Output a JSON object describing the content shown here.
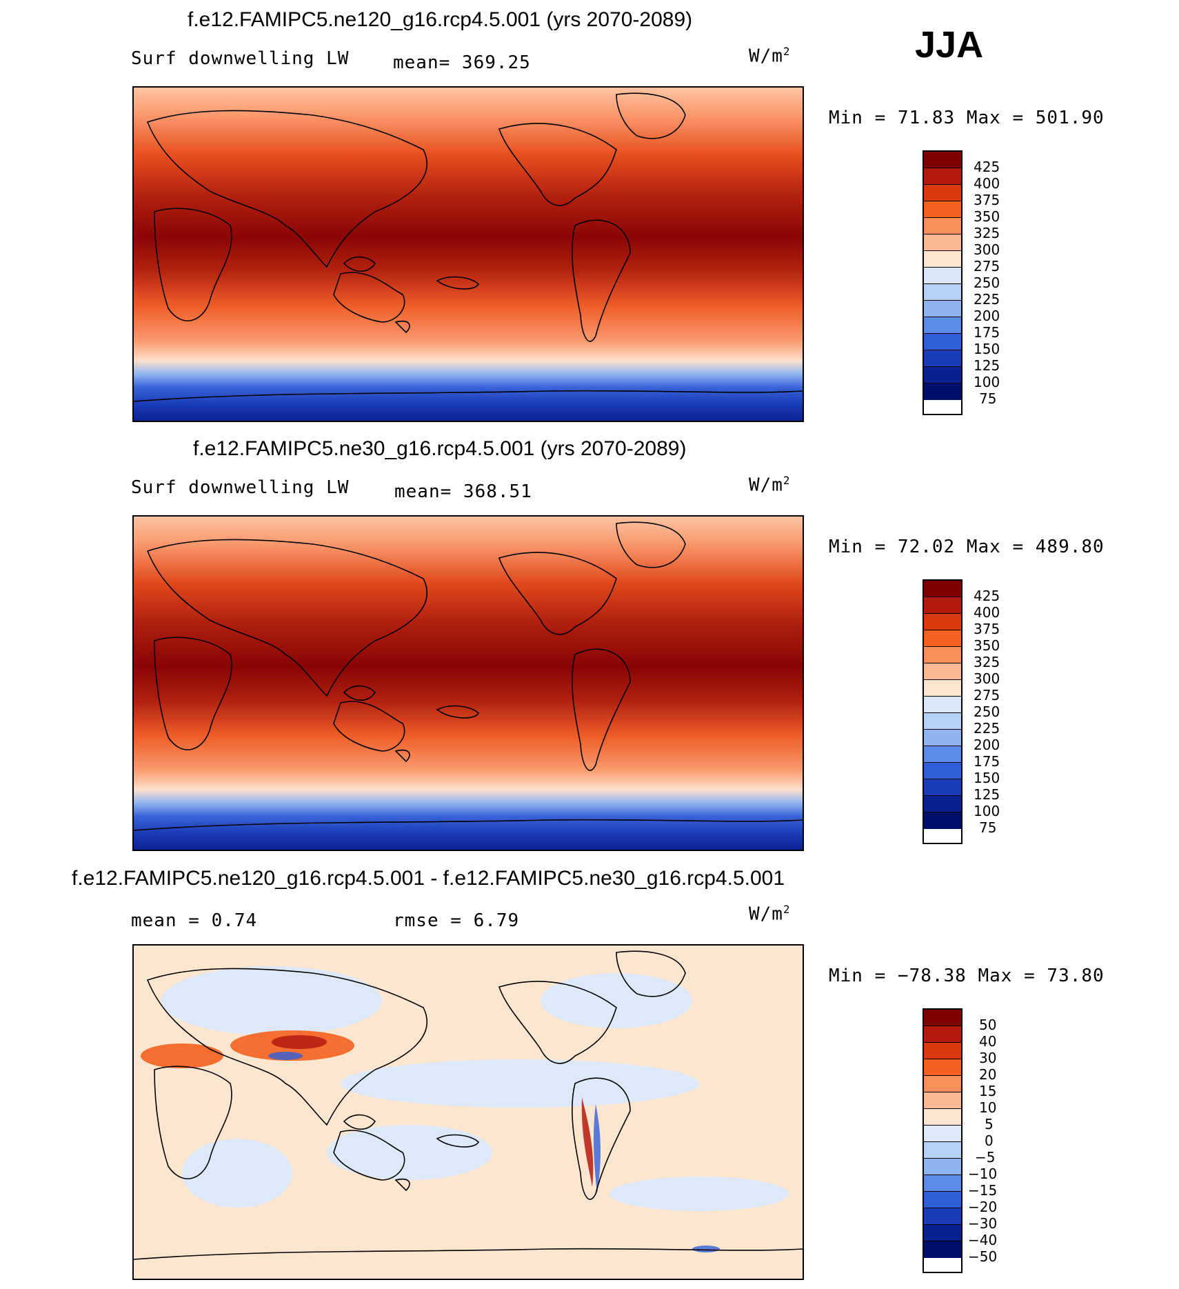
{
  "season": "JJA",
  "units_base": "W/m",
  "units_exp": "2",
  "panels": [
    {
      "title": "f.e12.FAMIPC5.ne120_g16.rcp4.5.001 (yrs 2070-2089)",
      "variable": "Surf downwelling LW",
      "stat": "mean= 369.25",
      "minmax": "Min =   71.83 Max =  501.90",
      "palette": [
        "#800000",
        "#b3190f",
        "#db3a0f",
        "#f5621f",
        "#fa8f5c",
        "#fcb894",
        "#fde6d0",
        "#d9e8f8",
        "#b6d1f5",
        "#8fb5f0",
        "#5c8ae8",
        "#2f5fd8",
        "#1a3cb8",
        "#0a2192",
        "#000f6a"
      ],
      "labels": [
        "425",
        "400",
        "375",
        "350",
        "325",
        "300",
        "275",
        "250",
        "225",
        "200",
        "175",
        "150",
        "125",
        "100",
        "75"
      ]
    },
    {
      "title": "f.e12.FAMIPC5.ne30_g16.rcp4.5.001 (yrs 2070-2089)",
      "variable": "Surf downwelling LW",
      "stat": "mean= 368.51",
      "minmax": "Min =   72.02 Max =  489.80",
      "palette": [
        "#800000",
        "#b3190f",
        "#db3a0f",
        "#f5621f",
        "#fa8f5c",
        "#fcb894",
        "#fde6d0",
        "#d9e8f8",
        "#b6d1f5",
        "#8fb5f0",
        "#5c8ae8",
        "#2f5fd8",
        "#1a3cb8",
        "#0a2192",
        "#000f6a"
      ],
      "labels": [
        "425",
        "400",
        "375",
        "350",
        "325",
        "300",
        "275",
        "250",
        "225",
        "200",
        "175",
        "150",
        "125",
        "100",
        "75"
      ]
    },
    {
      "title": "f.e12.FAMIPC5.ne120_g16.rcp4.5.001 - f.e12.FAMIPC5.ne30_g16.rcp4.5.001",
      "mean_label": "mean =   0.74",
      "rmse_label": "rmse =   6.79",
      "minmax": "Min = −78.38 Max =   73.80",
      "palette": [
        "#800000",
        "#b3190f",
        "#db3a0f",
        "#f5621f",
        "#fa8f5c",
        "#fcb894",
        "#fde6d0",
        "#dde9f8",
        "#b6d1f5",
        "#8fb5f0",
        "#5c8ae8",
        "#2f5fd8",
        "#1a3cb8",
        "#0a2192",
        "#000f6a"
      ],
      "labels": [
        "50",
        "40",
        "30",
        "20",
        "15",
        "10",
        "5",
        "0",
        "−5",
        "−10",
        "−15",
        "−20",
        "−30",
        "−40",
        "−50"
      ]
    }
  ]
}
